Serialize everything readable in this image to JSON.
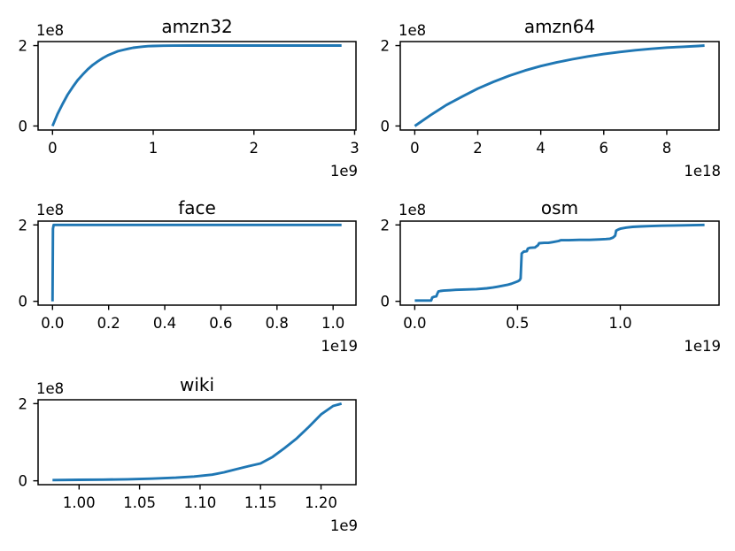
{
  "figure": {
    "background": "#ffffff"
  },
  "style": {
    "line_color": "#1f77b4",
    "line_width": 2.9,
    "spine_color": "#000000",
    "text_color": "#000000"
  },
  "chart_data": [
    {
      "type": "line",
      "title": "amzn32",
      "xlabel": "",
      "ylabel": "",
      "x_offset_label": "1e9",
      "y_offset_label": "1e8",
      "grid": false,
      "legend": null,
      "xlim": [
        -143500000,
        3013500000
      ],
      "ylim": [
        -10000000,
        210000000
      ],
      "x_ticks": {
        "values": [
          0,
          1000000000.0,
          2000000000.0,
          3000000000.0
        ],
        "labels": [
          "0",
          "1",
          "2",
          "3"
        ]
      },
      "y_ticks": {
        "values": [
          0,
          200000000.0
        ],
        "labels": [
          "0",
          "2"
        ]
      },
      "series": [
        {
          "name": "amzn32",
          "points": [
            [
              0,
              0
            ],
            [
              50000000.0,
              30000000.0
            ],
            [
              100000000.0,
              55000000.0
            ],
            [
              150000000.0,
              78000000.0
            ],
            [
              200000000.0,
              97000000.0
            ],
            [
              250000000.0,
              114000000.0
            ],
            [
              300000000.0,
              128000000.0
            ],
            [
              350000000.0,
              141000000.0
            ],
            [
              400000000.0,
              152000000.0
            ],
            [
              450000000.0,
              161000000.0
            ],
            [
              500000000.0,
              169000000.0
            ],
            [
              550000000.0,
              176000000.0
            ],
            [
              600000000.0,
              181000000.0
            ],
            [
              650000000.0,
              186000000.0
            ],
            [
              700000000.0,
              189000000.0
            ],
            [
              750000000.0,
              192000000.0
            ],
            [
              800000000.0,
              194500000.0
            ],
            [
              850000000.0,
              196200000.0
            ],
            [
              900000000.0,
              197500000.0
            ],
            [
              950000000.0,
              198500000.0
            ],
            [
              1000000000.0,
              199000000.0
            ],
            [
              1100000000.0,
              199600000.0
            ],
            [
              1200000000.0,
              199900000.0
            ],
            [
              1400000000.0,
              200000000.0
            ],
            [
              2870000000.0,
              200000000.0
            ]
          ]
        }
      ]
    },
    {
      "type": "line",
      "title": "amzn64",
      "xlabel": "",
      "ylabel": "",
      "x_offset_label": "1e18",
      "y_offset_label": "1e8",
      "grid": false,
      "legend": null,
      "xlim": [
        -4.6e+17,
        9.66e+18
      ],
      "ylim": [
        -10000000,
        210000000
      ],
      "x_ticks": {
        "values": [
          0,
          2e+18,
          4e+18,
          6e+18,
          8e+18
        ],
        "labels": [
          "0",
          "2",
          "4",
          "6",
          "8"
        ]
      },
      "y_ticks": {
        "values": [
          0,
          200000000.0
        ],
        "labels": [
          "0",
          "2"
        ]
      },
      "series": [
        {
          "name": "amzn64",
          "points": [
            [
              0,
              0
            ],
            [
              5e+17,
              27000000.0
            ],
            [
              1e+18,
              52000000.0
            ],
            [
              1.5e+18,
              73000000.0
            ],
            [
              2e+18,
              93000000.0
            ],
            [
              2.5e+18,
              110000000.0
            ],
            [
              3e+18,
              125000000.0
            ],
            [
              3.5e+18,
              138000000.0
            ],
            [
              4e+18,
              149000000.0
            ],
            [
              4.5e+18,
              158000000.0
            ],
            [
              5e+18,
              166000000.0
            ],
            [
              5.5e+18,
              173000000.0
            ],
            [
              6e+18,
              179000000.0
            ],
            [
              6.5e+18,
              184000000.0
            ],
            [
              7e+18,
              188500000.0
            ],
            [
              7.5e+18,
              192000000.0
            ],
            [
              8e+18,
              195000000.0
            ],
            [
              8.5e+18,
              197000000.0
            ],
            [
              9e+18,
              199000000.0
            ],
            [
              9.2e+18,
              200000000.0
            ]
          ]
        }
      ]
    },
    {
      "type": "line",
      "title": "face",
      "xlabel": "",
      "ylabel": "",
      "x_offset_label": "1e19",
      "y_offset_label": "1e8",
      "grid": false,
      "legend": null,
      "xlim": [
        -5.15e+17,
        1.0815e+19
      ],
      "ylim": [
        -10000000,
        210000000
      ],
      "x_ticks": {
        "values": [
          0,
          2e+18,
          4e+18,
          6e+18,
          8e+18,
          1e+19
        ],
        "labels": [
          "0.0",
          "0.2",
          "0.4",
          "0.6",
          "0.8",
          "1.0"
        ]
      },
      "y_ticks": {
        "values": [
          0,
          200000000.0
        ],
        "labels": [
          "0",
          "2"
        ]
      },
      "series": [
        {
          "name": "face",
          "points": [
            [
              0,
              0
            ],
            [
              1.5e+16,
              190000000.0
            ],
            [
              4e+16,
              200000000.0
            ],
            [
              1.03e+19,
              200000000.0
            ]
          ]
        }
      ]
    },
    {
      "type": "line",
      "title": "osm",
      "xlabel": "",
      "ylabel": "",
      "x_offset_label": "1e19",
      "y_offset_label": "1e8",
      "grid": false,
      "legend": null,
      "xlim": [
        -7.05e+17,
        1.4805e+19
      ],
      "ylim": [
        -10000000,
        210000000
      ],
      "x_ticks": {
        "values": [
          0,
          5e+18,
          1e+19
        ],
        "labels": [
          "0.0",
          "0.5",
          "1.0"
        ]
      },
      "y_ticks": {
        "values": [
          0,
          200000000.0
        ],
        "labels": [
          "0",
          "2"
        ]
      },
      "series": [
        {
          "name": "osm",
          "points": [
            [
              0,
              2000000.0
            ],
            [
              8e+17,
              2000000.0
            ],
            [
              8.5e+17,
              10000000.0
            ],
            [
              9.5e+17,
              12000000.0
            ],
            [
              1.05e+18,
              13000000.0
            ],
            [
              1.1e+18,
              20000000.0
            ],
            [
              1.15e+18,
              26000000.0
            ],
            [
              1.25e+18,
              27000000.0
            ],
            [
              1.4e+18,
              28000000.0
            ],
            [
              1.7e+18,
              29000000.0
            ],
            [
              2e+18,
              30000000.0
            ],
            [
              2.5e+18,
              31000000.0
            ],
            [
              3e+18,
              32000000.0
            ],
            [
              3.5e+18,
              34000000.0
            ],
            [
              3.8e+18,
              36000000.0
            ],
            [
              4e+18,
              38000000.0
            ],
            [
              4.2e+18,
              40000000.0
            ],
            [
              4.5e+18,
              43000000.0
            ],
            [
              4.7e+18,
              46000000.0
            ],
            [
              5e+18,
              52000000.0
            ],
            [
              5.1e+18,
              55000000.0
            ],
            [
              5.15e+18,
              60000000.0
            ],
            [
              5.2e+18,
              125000000.0
            ],
            [
              5.3e+18,
              130000000.0
            ],
            [
              5.45e+18,
              131000000.0
            ],
            [
              5.5e+18,
              138000000.0
            ],
            [
              5.6e+18,
              140000000.0
            ],
            [
              5.85e+18,
              141000000.0
            ],
            [
              6e+18,
              147000000.0
            ],
            [
              6.05e+18,
              152000000.0
            ],
            [
              6.3e+18,
              153000000.0
            ],
            [
              6.5e+18,
              153000000.0
            ],
            [
              6.7e+18,
              155000000.0
            ],
            [
              7e+18,
              158000000.0
            ],
            [
              7.1e+18,
              160000000.0
            ],
            [
              7.5e+18,
              160000000.0
            ],
            [
              8e+18,
              161000000.0
            ],
            [
              8.5e+18,
              161000000.0
            ],
            [
              9e+18,
              162000000.0
            ],
            [
              9.3e+18,
              163000000.0
            ],
            [
              9.5e+18,
              164000000.0
            ],
            [
              9.65e+18,
              167000000.0
            ],
            [
              9.75e+18,
              172000000.0
            ],
            [
              9.8e+18,
              185000000.0
            ],
            [
              9.9e+18,
              188000000.0
            ],
            [
              1e+19,
              190000000.0
            ],
            [
              1.03e+19,
              193000000.0
            ],
            [
              1.06e+19,
              195000000.0
            ],
            [
              1.1e+19,
              196000000.0
            ],
            [
              1.15e+19,
              197000000.0
            ],
            [
              1.2e+19,
              198000000.0
            ],
            [
              1.3e+19,
              199000000.0
            ],
            [
              1.41e+19,
              200000000.0
            ]
          ]
        }
      ]
    },
    {
      "type": "line",
      "title": "wiki",
      "xlabel": "",
      "ylabel": "",
      "x_offset_label": "1e9",
      "y_offset_label": "1e8",
      "grid": false,
      "legend": null,
      "xlim": [
        966100000.0,
        1228900000.0
      ],
      "ylim": [
        -10000000,
        210000000
      ],
      "x_ticks": {
        "values": [
          1000000000.0,
          1050000000.0,
          1100000000.0,
          1150000000.0,
          1200000000.0
        ],
        "labels": [
          "1.00",
          "1.05",
          "1.10",
          "1.15",
          "1.20"
        ]
      },
      "y_ticks": {
        "values": [
          0,
          200000000.0
        ],
        "labels": [
          "0",
          "2"
        ]
      },
      "series": [
        {
          "name": "wiki",
          "points": [
            [
              978000000.0,
              2000000.0
            ],
            [
              1000000000.0,
              2500000.0
            ],
            [
              1020000000.0,
              3000000.0
            ],
            [
              1040000000.0,
              4000000.0
            ],
            [
              1060000000.0,
              5500000.0
            ],
            [
              1080000000.0,
              8000000.0
            ],
            [
              1095000000.0,
              11000000.0
            ],
            [
              1110000000.0,
              16000000.0
            ],
            [
              1120000000.0,
              22000000.0
            ],
            [
              1130000000.0,
              30000000.0
            ],
            [
              1140000000.0,
              38000000.0
            ],
            [
              1150000000.0,
              45000000.0
            ],
            [
              1160000000.0,
              62000000.0
            ],
            [
              1170000000.0,
              85000000.0
            ],
            [
              1180000000.0,
              110000000.0
            ],
            [
              1190000000.0,
              140000000.0
            ],
            [
              1200000000.0,
              172000000.0
            ],
            [
              1210000000.0,
              194000000.0
            ],
            [
              1217000000.0,
              200000000.0
            ]
          ]
        }
      ]
    }
  ]
}
